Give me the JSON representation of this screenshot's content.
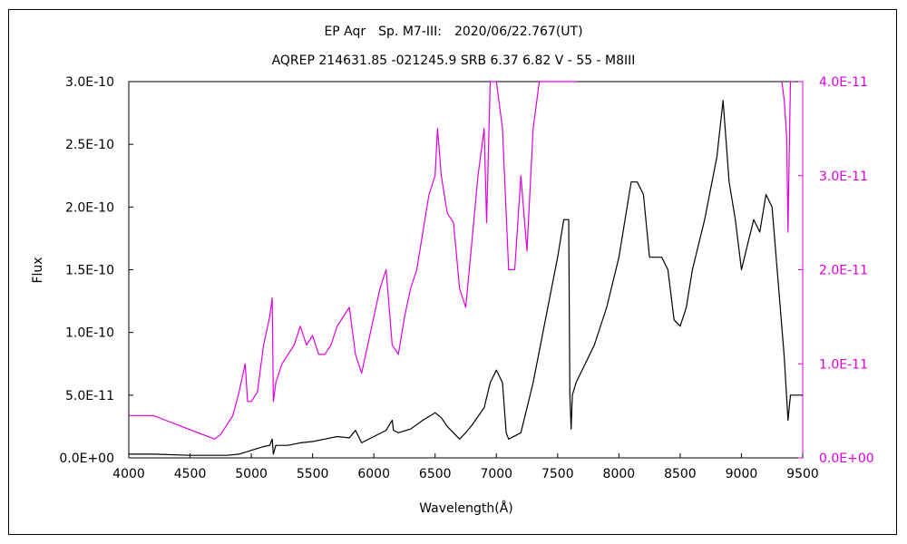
{
  "chart_data": {
    "type": "line",
    "title": "EP Aqr　Sp. M7-III:　2020/06/22.767(UT)",
    "subtitle": "AQREP 214631.85 -021245.9 SRB 6.37 6.82 V - 55 - M8III",
    "xlabel": "Wavelength(Å)",
    "ylabel": "Flux",
    "xlim": [
      4000,
      9500
    ],
    "ylim": [
      0,
      3e-10
    ],
    "ylim_right": [
      0,
      4e-11
    ],
    "x_ticks": [
      "4000",
      "4500",
      "5000",
      "5500",
      "6000",
      "6500",
      "7000",
      "7500",
      "8000",
      "8500",
      "9000",
      "9500"
    ],
    "y_ticks_left": [
      "0.0E+00",
      "5.0E-11",
      "1.0E-10",
      "1.5E-10",
      "2.0E-10",
      "2.5E-10",
      "3.0E-10"
    ],
    "y_ticks_right": [
      "0.0E+00",
      "1.0E-11",
      "2.0E-11",
      "3.0E-11",
      "4.0E-11"
    ],
    "grid": false,
    "legend": "none",
    "colors": {
      "left_series": "#000000",
      "right_series": "#e000e0"
    },
    "series": [
      {
        "axis": "left",
        "color": "#000000",
        "x": [
          4000,
          4200,
          4500,
          4700,
          4800,
          4900,
          5000,
          5100,
          5150,
          5170,
          5180,
          5200,
          5300,
          5400,
          5500,
          5600,
          5700,
          5800,
          5850,
          5900,
          6000,
          6100,
          6150,
          6160,
          6200,
          6300,
          6400,
          6500,
          6550,
          6600,
          6700,
          6750,
          6800,
          6900,
          6950,
          7000,
          7050,
          7080,
          7100,
          7200,
          7300,
          7400,
          7500,
          7550,
          7590,
          7600,
          7610,
          7620,
          7650,
          7700,
          7800,
          7900,
          8000,
          8100,
          8150,
          8200,
          8250,
          8300,
          8350,
          8400,
          8450,
          8500,
          8550,
          8600,
          8700,
          8800,
          8850,
          8900,
          8950,
          9000,
          9050,
          9100,
          9150,
          9200,
          9250,
          9300,
          9350,
          9380,
          9400,
          9450,
          9500
        ],
        "y": [
          3e-12,
          3e-12,
          2e-12,
          2e-12,
          2e-12,
          3e-12,
          6e-12,
          9e-12,
          1e-11,
          1.5e-11,
          3e-12,
          1e-11,
          1e-11,
          1.2e-11,
          1.3e-11,
          1.5e-11,
          1.7e-11,
          1.6e-11,
          2.2e-11,
          1.2e-11,
          1.7e-11,
          2.2e-11,
          3e-11,
          2.2e-11,
          2e-11,
          2.3e-11,
          3e-11,
          3.6e-11,
          3.2e-11,
          2.5e-11,
          1.5e-11,
          2e-11,
          2.6e-11,
          4e-11,
          6e-11,
          7e-11,
          6e-11,
          2e-11,
          1.5e-11,
          2e-11,
          6e-11,
          1.1e-10,
          1.6e-10,
          1.9e-10,
          1.9e-10,
          5e-11,
          2.3e-11,
          5e-11,
          6e-11,
          7e-11,
          9e-11,
          1.2e-10,
          1.6e-10,
          2.2e-10,
          2.2e-10,
          2.1e-10,
          1.6e-10,
          1.6e-10,
          1.6e-10,
          1.5e-10,
          1.1e-10,
          1.05e-10,
          1.2e-10,
          1.5e-10,
          1.9e-10,
          2.4e-10,
          2.85e-10,
          2.2e-10,
          1.9e-10,
          1.5e-10,
          1.7e-10,
          1.9e-10,
          1.8e-10,
          2.1e-10,
          2e-10,
          1.4e-10,
          8e-11,
          3e-11,
          5e-11,
          5e-11,
          5e-11
        ]
      },
      {
        "axis": "right",
        "color": "#e000e0",
        "x": [
          4000,
          4100,
          4200,
          4300,
          4400,
          4500,
          4600,
          4700,
          4750,
          4800,
          4850,
          4900,
          4950,
          4970,
          5000,
          5050,
          5100,
          5150,
          5170,
          5180,
          5200,
          5250,
          5300,
          5350,
          5400,
          5450,
          5500,
          5550,
          5600,
          5650,
          5700,
          5750,
          5800,
          5850,
          5900,
          5950,
          6000,
          6050,
          6100,
          6150,
          6200,
          6250,
          6300,
          6350,
          6400,
          6450,
          6500,
          6520,
          6550,
          6600,
          6650,
          6700,
          6750,
          6800,
          6850,
          6900,
          6920,
          6950,
          7000,
          7050,
          7100,
          7150,
          7200,
          7250,
          7300,
          7350,
          7400,
          7450,
          7500,
          7550,
          7600,
          7620,
          7650
        ],
        "y": [
          4.5e-12,
          4.5e-12,
          4.5e-12,
          4e-12,
          3.5e-12,
          3e-12,
          2.5e-12,
          2e-12,
          2.5e-12,
          3.5e-12,
          4.5e-12,
          7e-12,
          1e-11,
          6e-12,
          6e-12,
          7e-12,
          1.2e-11,
          1.5e-11,
          1.7e-11,
          6e-12,
          8e-12,
          1e-11,
          1.1e-11,
          1.2e-11,
          1.4e-11,
          1.2e-11,
          1.3e-11,
          1.1e-11,
          1.1e-11,
          1.2e-11,
          1.4e-11,
          1.5e-11,
          1.6e-11,
          1.1e-11,
          9e-12,
          1.2e-11,
          1.5e-11,
          1.8e-11,
          2e-11,
          1.2e-11,
          1.1e-11,
          1.5e-11,
          1.8e-11,
          2e-11,
          2.4e-11,
          2.8e-11,
          3e-11,
          3.5e-11,
          3e-11,
          2.6e-11,
          2.5e-11,
          1.8e-11,
          1.6e-11,
          2.3e-11,
          3e-11,
          3.5e-11,
          2.5e-11,
          4e-11,
          4e-11,
          3.5e-11,
          2e-11,
          2e-11,
          3e-11,
          2.2e-11,
          3.5e-11,
          4e-11,
          4e-11,
          4e-11,
          4e-11,
          4e-11,
          4e-11,
          4e-11,
          4e-11
        ]
      },
      {
        "axis": "right",
        "color": "#e000e0",
        "x": [
          9330,
          9350,
          9370,
          9380,
          9390,
          9400,
          9410,
          9420,
          9430
        ],
        "y": [
          4e-11,
          3.8e-11,
          3.4e-11,
          2.4e-11,
          3.2e-11,
          4e-11,
          4e-11,
          4e-11,
          4e-11
        ]
      }
    ]
  }
}
